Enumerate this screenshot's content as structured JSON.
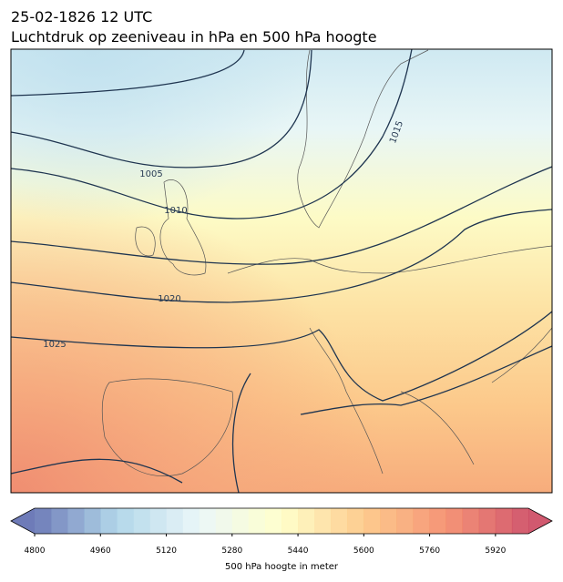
{
  "header": {
    "title": "25-02-1826 12 UTC",
    "subtitle": "Luchtdruk op zeeniveau in hPa en 500 hPa hoogte"
  },
  "contours": [
    {
      "label": "1005"
    },
    {
      "label": "1010"
    },
    {
      "label": "1015"
    },
    {
      "label": "1020"
    },
    {
      "label": "1025"
    }
  ],
  "colorbar": {
    "min": 4800,
    "max": 6000,
    "step": 40,
    "ticks": [
      4800,
      4960,
      5120,
      5280,
      5440,
      5600,
      5760,
      5920
    ],
    "label": "500 hPa hoogte in meter",
    "colormap": [
      "#4a5aa6",
      "#9fcde4",
      "#e6f5f7",
      "#ffffbf",
      "#fdbf72",
      "#f37a55",
      "#c6304b"
    ],
    "opacity": 0.8
  }
}
